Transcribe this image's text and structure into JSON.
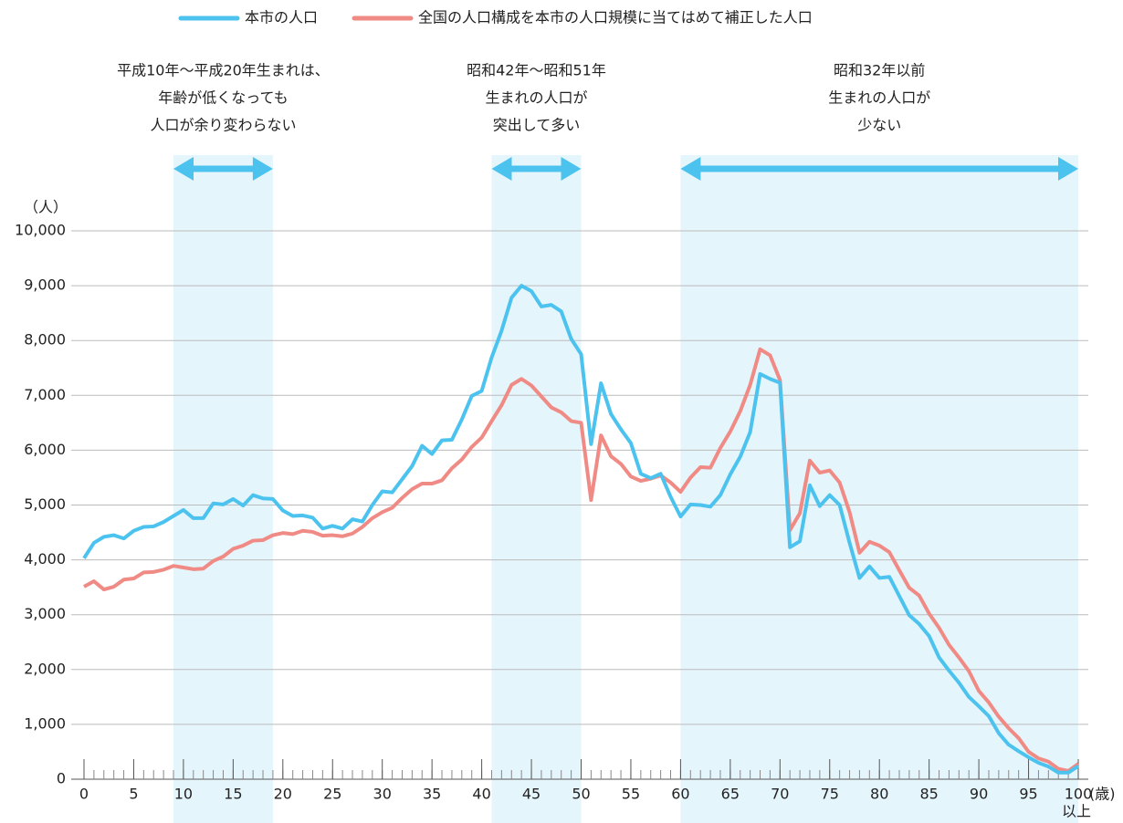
{
  "chart_data": {
    "type": "line",
    "legend": {
      "position": "top"
    },
    "y_unit": "（人）",
    "x_unit": "(歳)",
    "x_last_suffix": "以上",
    "xlim": [
      0,
      100
    ],
    "xticks": [
      0,
      5,
      10,
      15,
      20,
      25,
      30,
      35,
      40,
      45,
      50,
      55,
      60,
      65,
      70,
      75,
      80,
      85,
      90,
      95,
      100
    ],
    "ylim": [
      0,
      10000
    ],
    "yticks": [
      0,
      {
        "value": 1000,
        "label": "1,000"
      },
      {
        "value": 2000,
        "label": "2,000"
      },
      {
        "value": 3000,
        "label": "3,000"
      },
      {
        "value": 4000,
        "label": "4,000"
      },
      {
        "value": 5000,
        "label": "5,000"
      },
      {
        "value": 6000,
        "label": "6,000"
      },
      {
        "value": 7000,
        "label": "7,000"
      },
      {
        "value": 8000,
        "label": "8,000"
      },
      {
        "value": 9000,
        "label": "9,000"
      },
      {
        "value": 10000,
        "label": "10,000"
      }
    ],
    "grid": true,
    "bands": [
      {
        "range": [
          9,
          19
        ],
        "text": [
          "平成10年～平成20年生まれは、",
          "年齢が低くなっても",
          "人口が余り変わらない"
        ]
      },
      {
        "range": [
          41,
          50
        ],
        "text": [
          "昭和42年～昭和51年",
          "生まれの人口が",
          "突出して多い"
        ]
      },
      {
        "range": [
          60,
          100
        ],
        "text": [
          "昭和32年以前",
          "生まれの人口が",
          "少ない"
        ]
      }
    ],
    "x": [
      0,
      1,
      2,
      3,
      4,
      5,
      6,
      7,
      8,
      9,
      10,
      11,
      12,
      13,
      14,
      15,
      16,
      17,
      18,
      19,
      20,
      21,
      22,
      23,
      24,
      25,
      26,
      27,
      28,
      29,
      30,
      31,
      32,
      33,
      34,
      35,
      36,
      37,
      38,
      39,
      40,
      41,
      42,
      43,
      44,
      45,
      46,
      47,
      48,
      49,
      50,
      51,
      52,
      53,
      54,
      55,
      56,
      57,
      58,
      59,
      60,
      61,
      62,
      63,
      64,
      65,
      66,
      67,
      68,
      69,
      70,
      71,
      72,
      73,
      74,
      75,
      76,
      77,
      78,
      79,
      80,
      81,
      82,
      83,
      84,
      85,
      86,
      87,
      88,
      89,
      90,
      91,
      92,
      93,
      94,
      95,
      96,
      97,
      98,
      99,
      100
    ],
    "series": [
      {
        "name": "本市の人口",
        "color": "#4cc3ee",
        "values": [
          4030,
          4310,
          4420,
          4450,
          4390,
          4530,
          4600,
          4610,
          4690,
          4800,
          4910,
          4760,
          4760,
          5030,
          5010,
          5110,
          4990,
          5180,
          5120,
          5110,
          4900,
          4800,
          4810,
          4770,
          4570,
          4620,
          4570,
          4740,
          4700,
          5000,
          5250,
          5230,
          5470,
          5710,
          6080,
          5930,
          6180,
          6190,
          6560,
          6990,
          7080,
          7690,
          8180,
          8780,
          9000,
          8900,
          8620,
          8650,
          8530,
          8030,
          7750,
          6110,
          7220,
          6660,
          6380,
          6130,
          5570,
          5490,
          5570,
          5150,
          4790,
          5010,
          5000,
          4970,
          5180,
          5560,
          5880,
          6330,
          7390,
          7300,
          7230,
          4230,
          4340,
          5360,
          4980,
          5180,
          5000,
          4310,
          3670,
          3880,
          3670,
          3690,
          3340,
          2990,
          2830,
          2610,
          2220,
          1980,
          1760,
          1500,
          1330,
          1150,
          840,
          630,
          510,
          400,
          300,
          230,
          120,
          120,
          240
        ]
      },
      {
        "name": "全国の人口構成を本市の人口規模に当てはめて補正した人口",
        "color": "#f08a84",
        "values": [
          3510,
          3610,
          3460,
          3510,
          3640,
          3660,
          3770,
          3780,
          3820,
          3890,
          3860,
          3830,
          3840,
          3980,
          4060,
          4200,
          4260,
          4350,
          4360,
          4450,
          4490,
          4470,
          4530,
          4510,
          4440,
          4450,
          4430,
          4480,
          4600,
          4760,
          4870,
          4950,
          5130,
          5290,
          5390,
          5390,
          5450,
          5670,
          5830,
          6060,
          6230,
          6530,
          6820,
          7190,
          7300,
          7180,
          6980,
          6780,
          6690,
          6530,
          6500,
          5090,
          6270,
          5890,
          5750,
          5520,
          5440,
          5480,
          5540,
          5410,
          5240,
          5500,
          5690,
          5680,
          6040,
          6340,
          6710,
          7190,
          7840,
          7730,
          7280,
          4540,
          4850,
          5810,
          5590,
          5630,
          5410,
          4870,
          4130,
          4330,
          4260,
          4140,
          3810,
          3490,
          3350,
          3020,
          2760,
          2450,
          2220,
          1970,
          1610,
          1400,
          1140,
          930,
          750,
          500,
          380,
          320,
          190,
          150,
          280
        ]
      }
    ]
  }
}
